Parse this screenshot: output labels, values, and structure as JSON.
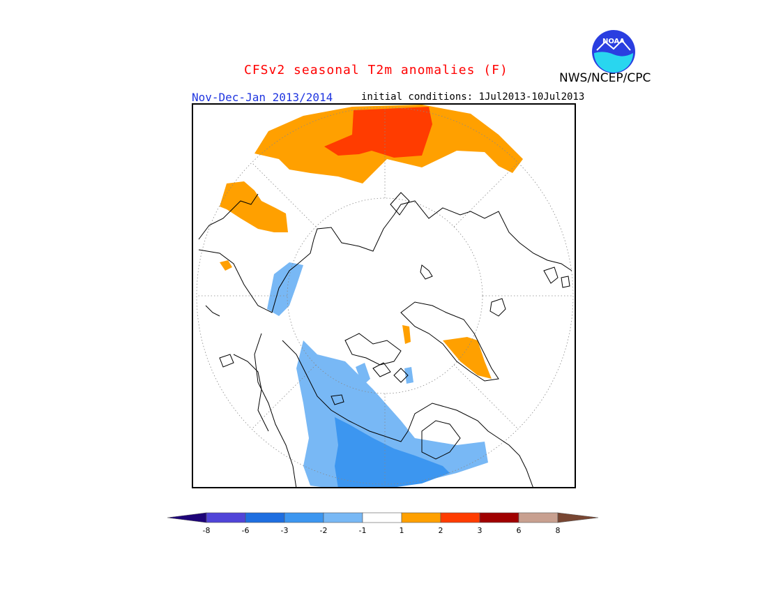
{
  "header": {
    "title": "CFSv2 seasonal T2m anomalies (F)",
    "agency": "NWS/NCEP/CPC",
    "season": "Nov-Dec-Jan 2013/2014",
    "initial_conditions": "initial conditions: 1Jul2013-10Jul2013",
    "logo_text": "NOAA"
  },
  "colors": {
    "water_cyan": "#29d6ef",
    "noaa_blue": "#2a3ee0",
    "title_red": "#ff0000",
    "season_blue": "#1f35e0"
  },
  "legend": {
    "bins": [
      {
        "color": "#1e0478"
      },
      {
        "color": "#5044d8"
      },
      {
        "color": "#1e6ee0"
      },
      {
        "color": "#3c96f0"
      },
      {
        "color": "#78b8f5"
      },
      {
        "color": "#ffffff"
      },
      {
        "color": "#ffa000"
      },
      {
        "color": "#ff3c00"
      },
      {
        "color": "#a00000"
      },
      {
        "color": "#c8a090"
      },
      {
        "color": "#784632"
      }
    ],
    "tick_labels": [
      "-8",
      "-6",
      "-3",
      "-2",
      "-1",
      "1",
      "2",
      "3",
      "6",
      "8"
    ]
  }
}
